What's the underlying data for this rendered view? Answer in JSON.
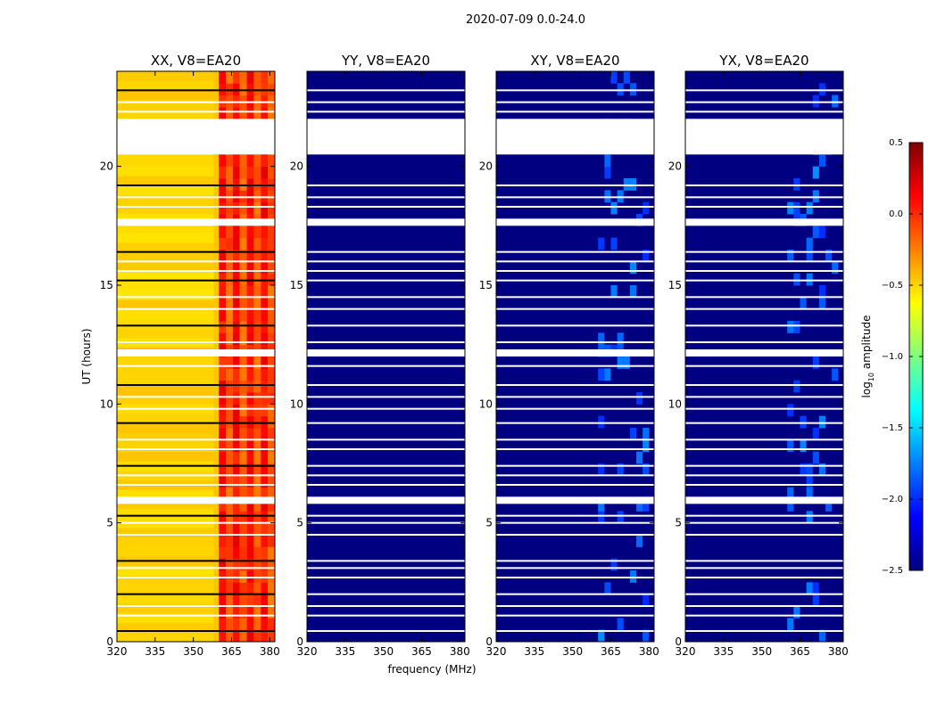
{
  "figure": {
    "suptitle": "2020-07-09 0.0-24.0",
    "ylabel": "UT (hours)",
    "xlabel": "frequency (MHz)"
  },
  "chart_data": {
    "type": "heatmap",
    "x_range": [
      320,
      382
    ],
    "y_range": [
      0,
      24
    ],
    "x_ticks": [
      "320",
      "335",
      "350",
      "365",
      "380"
    ],
    "x_tick_values": [
      320,
      335,
      350,
      365,
      380
    ],
    "y_ticks": [
      "0",
      "5",
      "10",
      "15",
      "20"
    ],
    "y_tick_values": [
      0,
      5,
      10,
      15,
      20
    ],
    "panels": [
      {
        "title": "XX, V8=EA20",
        "base_log_amp": -0.45,
        "hot_band_mhz": [
          360,
          382
        ],
        "hot_log_amp": 0.15
      },
      {
        "title": "YY, V8=EA20",
        "base_log_amp": -2.5,
        "hot_band_mhz": null,
        "hot_log_amp": -2.5
      },
      {
        "title": "XY, V8=EA20",
        "base_log_amp": -2.5,
        "hot_band_mhz": [
          360,
          380
        ],
        "hot_log_amp": -2.0
      },
      {
        "title": "YX, V8=EA20",
        "base_log_amp": -2.5,
        "hot_band_mhz": [
          360,
          380
        ],
        "hot_log_amp": -2.0
      }
    ],
    "flagged_ut_ranges": [
      [
        20.5,
        22.0
      ],
      [
        17.5,
        17.8
      ],
      [
        5.8,
        6.1
      ],
      [
        12.0,
        12.3
      ]
    ],
    "colorbar": {
      "label": "log10 amplitude",
      "label_main": "log",
      "label_sub": "10",
      "label_tail": " amplitude",
      "range": [
        -2.5,
        0.5
      ],
      "ticks": [
        "0.5",
        "0.0",
        "−0.5",
        "−1.0",
        "−1.5",
        "−2.0",
        "−2.5"
      ],
      "tick_values": [
        0.5,
        0.0,
        -0.5,
        -1.0,
        -1.5,
        -2.0,
        -2.5
      ],
      "colormap": "jet"
    }
  }
}
